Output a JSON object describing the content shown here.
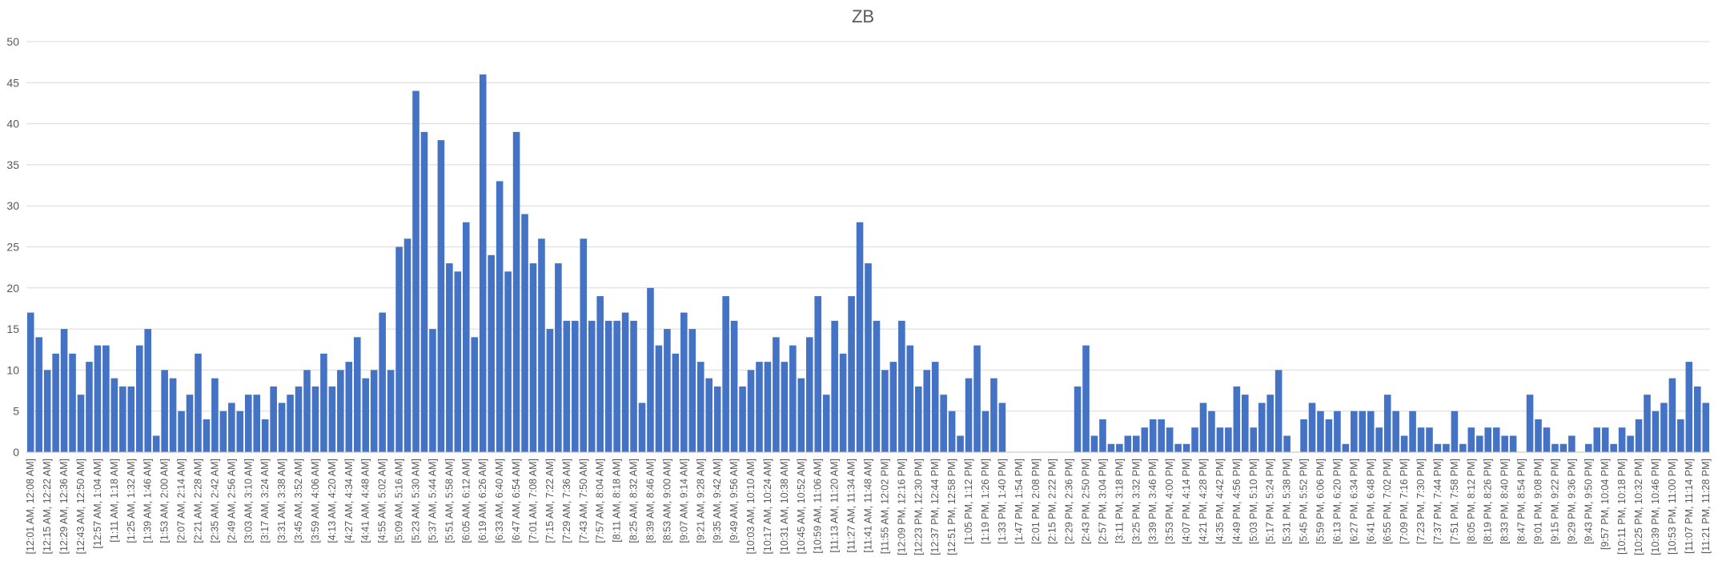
{
  "chart_data": {
    "type": "bar",
    "title": "ZB",
    "xlabel": "",
    "ylabel": "",
    "ylim": [
      0,
      50
    ],
    "yticks": [
      0,
      5,
      10,
      15,
      20,
      25,
      30,
      35,
      40,
      45,
      50
    ],
    "grid": true,
    "legend": "none",
    "colors": {
      "bar": "#4472C4",
      "grid": "#D9D9D9",
      "text": "#595959"
    },
    "start_minute": 1,
    "interval_minutes": 7,
    "values": [
      17,
      14,
      10,
      12,
      15,
      12,
      7,
      11,
      13,
      13,
      9,
      8,
      8,
      13,
      15,
      2,
      10,
      9,
      5,
      7,
      12,
      4,
      9,
      5,
      6,
      5,
      7,
      7,
      4,
      8,
      6,
      7,
      8,
      10,
      8,
      12,
      8,
      10,
      11,
      14,
      9,
      10,
      17,
      10,
      25,
      26,
      44,
      39,
      15,
      38,
      23,
      22,
      28,
      14,
      46,
      24,
      33,
      22,
      39,
      29,
      23,
      26,
      15,
      23,
      16,
      16,
      26,
      16,
      19,
      16,
      16,
      17,
      16,
      6,
      20,
      13,
      15,
      12,
      17,
      15,
      11,
      9,
      8,
      19,
      16,
      8,
      10,
      11,
      11,
      14,
      11,
      13,
      9,
      14,
      19,
      7,
      16,
      12,
      19,
      28,
      23,
      16,
      10,
      11,
      16,
      13,
      8,
      10,
      11,
      7,
      5,
      2,
      9,
      13,
      5,
      9,
      6,
      0,
      0,
      0,
      0,
      0,
      0,
      0,
      0,
      8,
      13,
      2,
      4,
      1,
      1,
      2,
      2,
      3,
      4,
      4,
      3,
      1,
      1,
      3,
      6,
      5,
      3,
      3,
      8,
      7,
      3,
      6,
      7,
      10,
      2,
      0,
      4,
      6,
      5,
      4,
      5,
      1,
      5,
      5,
      5,
      3,
      7,
      5,
      2,
      5,
      3,
      3,
      1,
      1,
      5,
      1,
      3,
      2,
      3,
      3,
      2,
      2,
      0,
      7,
      4,
      3,
      1,
      1,
      2,
      0,
      1,
      3,
      3,
      1,
      3,
      2,
      4,
      7,
      5,
      6,
      9,
      4,
      11,
      8,
      6
    ]
  }
}
